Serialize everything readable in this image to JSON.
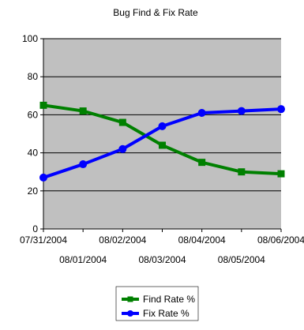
{
  "chart_data": {
    "type": "line",
    "title": "Bug Find & Fix Rate",
    "xlabel": "",
    "ylabel": "",
    "categories": [
      "07/31/2004",
      "08/01/2004",
      "08/02/2004",
      "08/03/2004",
      "08/04/2004",
      "08/05/2004",
      "08/06/2004"
    ],
    "ylim": [
      0,
      100
    ],
    "yticks": [
      0,
      20,
      40,
      60,
      80,
      100
    ],
    "grid": true,
    "plot_background": "#c0c0c0",
    "legend_position": "bottom",
    "series": [
      {
        "name": "Find Rate %",
        "color": "#008000",
        "values": [
          65,
          62,
          56,
          44,
          35,
          30,
          29
        ]
      },
      {
        "name": "Fix Rate %",
        "color": "#0000ff",
        "values": [
          27,
          34,
          42,
          54,
          61,
          62,
          63
        ]
      }
    ]
  }
}
